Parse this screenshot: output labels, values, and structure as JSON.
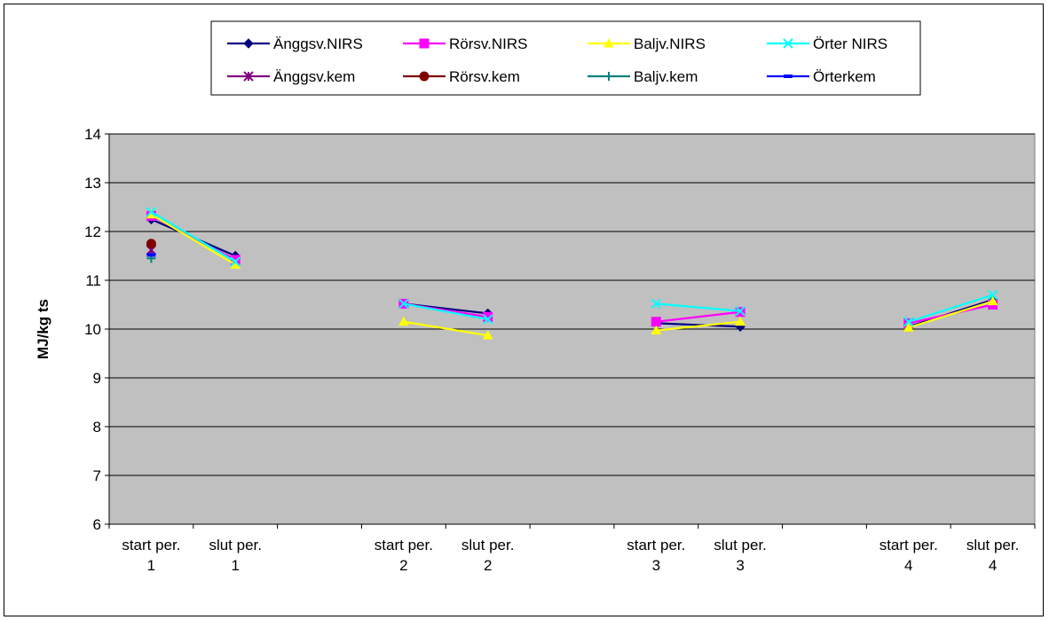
{
  "chart_data": {
    "type": "line",
    "title": "",
    "ylabel": "MJ/kg ts",
    "xlabel": "",
    "ylim": [
      6,
      14
    ],
    "yticks": [
      6,
      7,
      8,
      9,
      10,
      11,
      12,
      13,
      14
    ],
    "grid": true,
    "legend_position": "top",
    "plot_background": "#c0c0c0",
    "categories": [
      [
        "start per.",
        "1"
      ],
      [
        "slut per.",
        "1"
      ],
      [
        "",
        ""
      ],
      [
        "start per.",
        "2"
      ],
      [
        "slut per.",
        "2"
      ],
      [
        "",
        ""
      ],
      [
        "start per.",
        "3"
      ],
      [
        "slut per.",
        "3"
      ],
      [
        "",
        ""
      ],
      [
        "start per.",
        "4"
      ],
      [
        "slut per.",
        "4"
      ]
    ],
    "series": [
      {
        "name": "Änggsv.NIRS",
        "color": "#000080",
        "marker": "diamond",
        "values": [
          12.25,
          11.5,
          null,
          10.52,
          10.32,
          null,
          10.12,
          10.05,
          null,
          10.05,
          10.6
        ]
      },
      {
        "name": "Rörsv.NIRS",
        "color": "#ff00ff",
        "marker": "square",
        "values": [
          12.32,
          11.42,
          null,
          10.52,
          10.25,
          null,
          10.15,
          10.35,
          null,
          10.12,
          10.5
        ]
      },
      {
        "name": "Baljv.NIRS",
        "color": "#ffff00",
        "marker": "triangle",
        "values": [
          12.35,
          11.32,
          null,
          10.15,
          9.87,
          null,
          9.97,
          10.15,
          null,
          10.03,
          10.57
        ]
      },
      {
        "name": "Örter NIRS",
        "color": "#00ffff",
        "marker": "x",
        "values": [
          12.4,
          11.38,
          null,
          10.52,
          10.2,
          null,
          10.52,
          10.37,
          null,
          10.15,
          10.7
        ]
      },
      {
        "name": "Änggsv.kem",
        "color": "#800080",
        "marker": "star",
        "values": [
          11.62,
          null,
          null,
          null,
          null,
          null,
          null,
          null,
          null,
          null,
          null
        ]
      },
      {
        "name": "Rörsv.kem",
        "color": "#800000",
        "marker": "circle",
        "values": [
          11.75,
          null,
          null,
          null,
          null,
          null,
          null,
          null,
          null,
          null,
          null
        ]
      },
      {
        "name": "Baljv.kem",
        "color": "#008080",
        "marker": "plus",
        "values": [
          11.45,
          null,
          null,
          null,
          null,
          null,
          null,
          null,
          null,
          null,
          null
        ]
      },
      {
        "name": "Örterkem",
        "color": "#0000ff",
        "marker": "dash",
        "values": [
          11.52,
          null,
          null,
          null,
          null,
          null,
          null,
          null,
          null,
          null,
          null
        ]
      }
    ]
  }
}
